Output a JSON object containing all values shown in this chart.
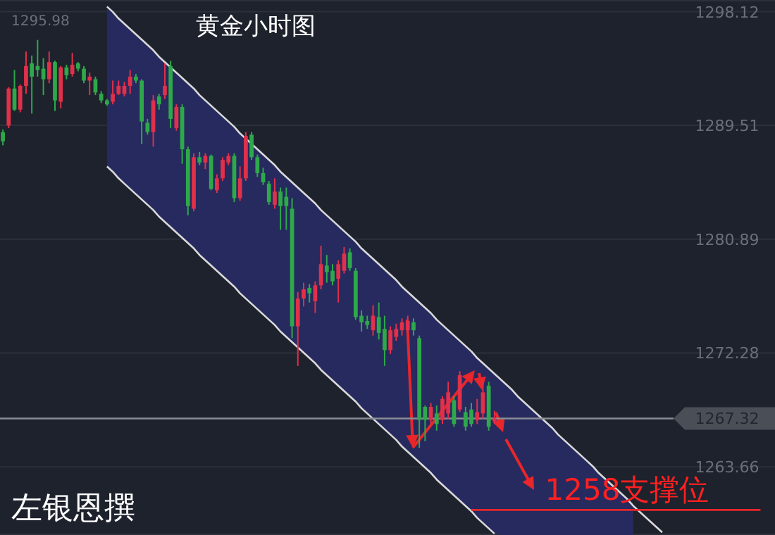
{
  "chart_data": {
    "type": "candlestick",
    "title": "黄金小时图",
    "categories": [
      null,
      null,
      null,
      null,
      null,
      null,
      null,
      null,
      null,
      null,
      null,
      null,
      null,
      null,
      null,
      null,
      null,
      null,
      null,
      null,
      null,
      null,
      null,
      null,
      null,
      null,
      null,
      null,
      null,
      null,
      null,
      null,
      null,
      null,
      null,
      null,
      null,
      null,
      null,
      null,
      null,
      null,
      null,
      null,
      null,
      null,
      null,
      null,
      null,
      null,
      null,
      null,
      null,
      null,
      null,
      null,
      null,
      null,
      null,
      null,
      null,
      null,
      null,
      null,
      null,
      null,
      null,
      null,
      null,
      null,
      null,
      null,
      null,
      null,
      null,
      null,
      null,
      null,
      null,
      null,
      null,
      null,
      null,
      null,
      null,
      null,
      null,
      null,
      null,
      null,
      null,
      null,
      null,
      null,
      null,
      null,
      null,
      null,
      null,
      null,
      null,
      null,
      null,
      null,
      null,
      null,
      null,
      null,
      null,
      null,
      null,
      null,
      null,
      null,
      null,
      null,
      null,
      null,
      null,
      null,
      null,
      null,
      null,
      null,
      null,
      null,
      null,
      null,
      null,
      null,
      null,
      null,
      null,
      null
    ],
    "ohlc": [
      [
        1289.0,
        1289.2,
        1288.0,
        1288.3
      ],
      [
        1289.5,
        1292.4,
        1289.3,
        1292.3
      ],
      [
        1292.3,
        1293.7,
        1290.6,
        1290.7
      ],
      [
        1290.7,
        1292.6,
        1290.5,
        1292.5
      ],
      [
        1292.5,
        1295.1,
        1291.9,
        1294.0
      ],
      [
        1294.2,
        1294.8,
        1290.4,
        1293.2
      ],
      [
        1294.0,
        1295.98,
        1293.2,
        1293.7
      ],
      [
        1293.8,
        1294.6,
        1291.8,
        1293.0
      ],
      [
        1293.0,
        1295.1,
        1292.7,
        1294.3
      ],
      [
        1294.3,
        1294.4,
        1290.6,
        1291.4
      ],
      [
        1291.3,
        1294.0,
        1290.8,
        1293.9
      ],
      [
        1293.9,
        1294.1,
        1293.0,
        1293.3
      ],
      [
        1293.4,
        1295.0,
        1293.2,
        1294.1
      ],
      [
        1294.2,
        1294.3,
        1293.6,
        1293.8
      ],
      [
        1293.8,
        1294.0,
        1292.7,
        1292.9
      ],
      [
        1292.9,
        1293.5,
        1291.8,
        1293.2
      ],
      [
        1293.0,
        1293.2,
        1291.8,
        1292.0
      ],
      [
        1291.9,
        1292.1,
        1291.2,
        1291.4
      ],
      [
        1291.4,
        1291.5,
        1291.0,
        1291.1
      ],
      [
        1291.3,
        1292.9,
        1291.1,
        1291.9
      ],
      [
        1291.9,
        1292.9,
        1291.8,
        1292.5
      ],
      [
        1291.9,
        1292.8,
        1291.7,
        1292.5
      ],
      [
        1292.5,
        1293.7,
        1291.9,
        1293.2
      ],
      [
        1293.2,
        1293.4,
        1292.7,
        1292.9
      ],
      [
        1292.9,
        1293.0,
        1288.1,
        1289.8
      ],
      [
        1289.7,
        1290.0,
        1288.8,
        1289.0
      ],
      [
        1289.0,
        1291.8,
        1287.9,
        1291.4
      ],
      [
        1291.7,
        1291.9,
        1290.7,
        1291.1
      ],
      [
        1291.8,
        1294.2,
        1291.5,
        1292.5
      ],
      [
        1294.0,
        1294.4,
        1289.3,
        1290.0
      ],
      [
        1289.3,
        1291.1,
        1289.1,
        1290.9
      ],
      [
        1290.9,
        1291.1,
        1286.6,
        1287.7
      ],
      [
        1287.7,
        1287.9,
        1282.7,
        1283.4
      ],
      [
        1283.2,
        1287.4,
        1283.0,
        1287.1
      ],
      [
        1287.1,
        1287.5,
        1286.5,
        1286.7
      ],
      [
        1286.7,
        1287.4,
        1286.2,
        1287.2
      ],
      [
        1287.2,
        1287.3,
        1284.6,
        1284.7
      ],
      [
        1284.6,
        1285.8,
        1284.4,
        1285.5
      ],
      [
        1285.5,
        1287.1,
        1285.3,
        1286.9
      ],
      [
        1286.7,
        1287.4,
        1286.5,
        1287.2
      ],
      [
        1287.2,
        1287.4,
        1283.7,
        1284.0
      ],
      [
        1284.0,
        1286.4,
        1283.8,
        1285.5
      ],
      [
        1285.5,
        1289.0,
        1285.3,
        1288.7
      ],
      [
        1288.8,
        1289.0,
        1286.9,
        1287.1
      ],
      [
        1287.1,
        1287.3,
        1285.6,
        1285.9
      ],
      [
        1285.9,
        1286.3,
        1285.0,
        1285.2
      ],
      [
        1285.1,
        1285.3,
        1283.5,
        1283.7
      ],
      [
        1283.5,
        1285.5,
        1283.2,
        1284.5
      ],
      [
        1284.5,
        1284.8,
        1281.6,
        1283.4
      ],
      [
        1284.1,
        1284.8,
        1281.6,
        1283.4
      ],
      [
        1283.2,
        1284.0,
        1273.4,
        1274.3
      ],
      [
        1274.3,
        1276.9,
        1271.3,
        1276.4
      ],
      [
        1276.4,
        1277.6,
        1275.8,
        1277.1
      ],
      [
        1277.2,
        1277.5,
        1276.1,
        1276.8
      ],
      [
        1276.2,
        1277.7,
        1275.3,
        1277.4
      ],
      [
        1277.4,
        1280.4,
        1277.1,
        1279.0
      ],
      [
        1278.9,
        1279.7,
        1277.6,
        1278.4
      ],
      [
        1278.5,
        1279.0,
        1277.4,
        1277.7
      ],
      [
        1277.9,
        1279.3,
        1276.1,
        1279.0
      ],
      [
        1278.5,
        1280.3,
        1278.3,
        1279.8
      ],
      [
        1279.9,
        1280.2,
        1278.5,
        1278.7
      ],
      [
        1278.5,
        1278.7,
        1274.8,
        1275.0
      ],
      [
        1275.1,
        1275.5,
        1273.9,
        1274.6
      ],
      [
        1274.7,
        1275.1,
        1274.1,
        1274.4
      ],
      [
        1274.0,
        1275.9,
        1273.6,
        1275.1
      ],
      [
        1275.0,
        1276.1,
        1273.3,
        1273.8
      ],
      [
        1274.1,
        1275.1,
        1271.3,
        1272.5
      ],
      [
        1272.5,
        1274.3,
        1272.2,
        1274.0
      ],
      [
        1273.5,
        1274.5,
        1273.2,
        1274.1
      ],
      [
        1274.0,
        1274.9,
        1273.6,
        1274.6
      ],
      [
        1274.0,
        1275.1,
        1273.8,
        1274.7
      ],
      [
        1274.6,
        1274.9,
        1273.6,
        1274.0
      ],
      [
        1273.4,
        1273.6,
        1265.1,
        1267.2
      ],
      [
        1268.2,
        1268.3,
        1265.6,
        1267.2
      ],
      [
        1267.2,
        1268.5,
        1266.9,
        1268.2
      ],
      [
        1267.7,
        1268.3,
        1266.4,
        1266.9
      ],
      [
        1267.2,
        1269.0,
        1266.9,
        1268.8
      ],
      [
        1267.7,
        1270.1,
        1267.3,
        1269.3
      ],
      [
        1268.7,
        1269.0,
        1266.7,
        1266.9
      ],
      [
        1268.0,
        1270.9,
        1267.8,
        1270.6
      ],
      [
        1267.8,
        1268.2,
        1266.4,
        1266.7
      ],
      [
        1268.0,
        1268.5,
        1266.7,
        1266.9
      ],
      [
        1267.2,
        1268.8,
        1266.9,
        1267.8
      ],
      [
        1267.7,
        1270.1,
        1267.3,
        1269.3
      ],
      [
        1269.8,
        1270.1,
        1266.4,
        1266.7
      ],
      [
        1267.1,
        1267.9,
        1266.9,
        1267.32
      ],
      null,
      null,
      null,
      null,
      null,
      null,
      null,
      null,
      null,
      null,
      null,
      null,
      null,
      null,
      null,
      null,
      null,
      null,
      null,
      null,
      null,
      null,
      null,
      null,
      null,
      null,
      null,
      null,
      null,
      null,
      null,
      null,
      null,
      null,
      null,
      null,
      null,
      null,
      null,
      null,
      null,
      null,
      null,
      null,
      null,
      null,
      null,
      null
    ],
    "colors": [
      "#2ea84a",
      "#e0304a",
      "#2ea84a",
      "#e0304a",
      "#e0304a",
      "#2ea84a",
      "#2ea84a",
      "#2ea84a",
      "#e0304a",
      "#2ea84a",
      "#e0304a",
      "#2ea84a",
      "#e0304a",
      "#2ea84a",
      "#2ea84a",
      "#e0304a",
      "#2ea84a",
      "#2ea84a",
      "#2ea84a",
      "#e0304a",
      "#e0304a",
      "#e0304a",
      "#e0304a",
      "#2ea84a",
      "#2ea84a",
      "#2ea84a",
      "#e0304a",
      "#2ea84a",
      "#e0304a",
      "#2ea84a",
      "#e0304a",
      "#2ea84a",
      "#2ea84a",
      "#e0304a",
      "#2ea84a",
      "#e0304a",
      "#2ea84a",
      "#e0304a",
      "#e0304a",
      "#e0304a",
      "#2ea84a",
      "#e0304a",
      "#e0304a",
      "#2ea84a",
      "#2ea84a",
      "#2ea84a",
      "#2ea84a",
      "#e0304a",
      "#2ea84a",
      "#2ea84a",
      "#2ea84a",
      "#e0304a",
      "#e0304a",
      "#2ea84a",
      "#e0304a",
      "#e0304a",
      "#2ea84a",
      "#2ea84a",
      "#e0304a",
      "#e0304a",
      "#2ea84a",
      "#2ea84a",
      "#2ea84a",
      "#2ea84a",
      "#e0304a",
      "#2ea84a",
      "#2ea84a",
      "#e0304a",
      "#e0304a",
      "#e0304a",
      "#e0304a",
      "#2ea84a",
      "#2ea84a",
      "#2ea84a",
      "#e0304a",
      "#2ea84a",
      "#e0304a",
      "#e0304a",
      "#2ea84a",
      "#e0304a",
      "#2ea84a",
      "#2ea84a",
      "#e0304a",
      "#e0304a",
      "#2ea84a",
      "#e0304a",
      null,
      null,
      null,
      null,
      null,
      null,
      null,
      null,
      null,
      null,
      null,
      null,
      null,
      null,
      null,
      null,
      null,
      null,
      null,
      null,
      null,
      null,
      null,
      null,
      null,
      null,
      null,
      null,
      null,
      null,
      null,
      null,
      null,
      null,
      null,
      null,
      null,
      null,
      null,
      null,
      null,
      null,
      null,
      null,
      null,
      null,
      null,
      null
    ],
    "series": [
      {
        "type": "line",
        "color": "#d9d9d9",
        "values": [
          null,
          null,
          null,
          null,
          null,
          null,
          null,
          null,
          null,
          null,
          null,
          null,
          null,
          null,
          null,
          null,
          null,
          null,
          1298.5,
          1298.1,
          1297.6,
          1297.2,
          1296.8,
          1296.4,
          1296.0,
          1295.6,
          1295.2,
          1294.7,
          1294.3,
          1293.9,
          1293.5,
          1293.1,
          1292.7,
          1292.3,
          1291.8,
          1291.4,
          1291.0,
          1290.6,
          1290.2,
          1289.8,
          1289.4,
          1288.9,
          1288.5,
          1288.1,
          1287.7,
          1287.3,
          1286.9,
          1286.5,
          1286.0,
          1285.6,
          1285.2,
          1284.8,
          1284.4,
          1284.0,
          1283.6,
          1283.1,
          1282.7,
          1282.3,
          1281.9,
          1281.5,
          1281.1,
          1280.7,
          1280.2,
          1279.8,
          1279.4,
          1279.0,
          1278.6,
          1278.2,
          1277.8,
          1277.3,
          1276.9,
          1276.5,
          1276.1,
          1275.7,
          1275.3,
          1274.8,
          1274.4,
          1274.0,
          1273.6,
          1273.2,
          1272.8,
          1272.4,
          1271.9,
          1271.5,
          1271.1,
          1270.7,
          1270.3,
          1269.9,
          1269.5,
          1269.0,
          1268.6,
          1268.2,
          1267.8,
          1267.4,
          1267.0,
          1266.6,
          1266.1,
          1265.7,
          1265.3,
          1264.9,
          1264.5,
          1264.1,
          1263.7,
          1263.2,
          1262.8,
          1262.4,
          1262.0,
          1261.6,
          1261.2,
          1260.7,
          1260.3,
          1259.9,
          1259.5,
          1259.1,
          1258.7,
          null,
          null,
          null,
          null,
          null,
          null,
          null,
          null,
          null,
          null,
          null,
          null,
          null,
          null,
          null,
          null,
          null,
          null,
          null
        ],
        "upper": [
          null,
          null,
          null,
          null,
          null,
          null,
          null,
          null,
          null,
          null,
          null,
          null,
          null,
          null,
          null,
          null,
          null,
          null,
          1298.5,
          1298.1,
          1297.6,
          1297.2,
          1296.8,
          1296.4,
          1296.0,
          1295.6,
          1295.2,
          1294.7,
          1294.3,
          1293.9,
          1293.5,
          1293.1,
          1292.7,
          1292.3,
          1291.8,
          1291.4,
          1291.0,
          1290.6,
          1290.2,
          1289.8,
          1289.4,
          1288.9,
          1288.5,
          1288.1,
          1287.7,
          1287.3,
          1286.9,
          1286.5,
          1286.0,
          1285.6,
          1285.2,
          1284.8,
          1284.4,
          1284.0,
          1283.6,
          1283.1,
          1282.7,
          1282.3,
          1281.9,
          1281.5,
          1281.1,
          1280.7,
          1280.2,
          1279.8,
          1279.4,
          1279.0,
          1278.6,
          1278.2,
          1277.8,
          1277.3,
          1276.9,
          1276.5,
          1276.1,
          1275.7,
          1275.3,
          1274.8,
          1274.4,
          1274.0,
          1273.6,
          1273.2,
          1272.8,
          1272.4,
          1271.9,
          1271.5,
          1271.1,
          1270.7,
          1270.3,
          1269.9,
          1269.5,
          1269.0,
          1268.6,
          1268.2,
          1267.8,
          1267.4,
          1267.0,
          1266.6,
          1266.1,
          1265.7,
          1265.3,
          1264.9,
          1264.5,
          1264.1,
          1263.7,
          1263.2,
          1262.8,
          1262.4,
          1262.0,
          1261.6,
          1261.2,
          1260.7,
          null,
          null,
          null,
          null,
          null,
          null,
          null,
          null,
          null,
          null,
          null,
          null,
          null,
          null,
          null,
          null,
          null,
          null,
          null,
          null,
          null,
          null,
          null,
          null
        ],
        "lower": [
          null,
          null,
          null,
          null,
          null,
          null,
          null,
          null,
          null,
          null,
          null,
          null,
          null,
          null,
          null,
          null,
          null,
          null,
          1286.4,
          1286.0,
          1285.5,
          1285.1,
          1284.7,
          1284.3,
          1283.9,
          1283.5,
          1283.1,
          1282.6,
          1282.2,
          1281.8,
          1281.4,
          1281.0,
          1280.6,
          1280.2,
          1279.7,
          1279.3,
          1278.9,
          1278.5,
          1278.1,
          1277.7,
          1277.3,
          1276.8,
          1276.4,
          1276.0,
          1275.6,
          1275.2,
          1274.8,
          1274.4,
          1273.9,
          1273.5,
          1273.1,
          1272.7,
          1272.3,
          1271.9,
          1271.5,
          1271.0,
          1270.6,
          1270.2,
          1269.8,
          1269.4,
          1269.0,
          1268.6,
          1268.1,
          1267.7,
          1267.3,
          1266.9,
          1266.5,
          1266.1,
          1265.7,
          1265.2,
          1264.8,
          1264.4,
          1264.0,
          1263.6,
          1263.2,
          1262.7,
          1262.3,
          1261.9,
          1261.5,
          1261.1,
          1260.7,
          1260.3,
          1259.8,
          1259.4,
          1259.0,
          1258.6,
          1258.5,
          1258.5,
          1258.5,
          1258.5,
          1258.5,
          1258.5,
          1258.5,
          1258.5,
          1258.5,
          1258.5,
          1258.5,
          1258.5,
          1258.5,
          1258.5,
          1258.5,
          1258.5,
          1258.5,
          1258.5,
          1258.5,
          1258.5,
          1258.5,
          1258.5,
          1258.5,
          1258.5,
          null,
          null,
          null,
          null,
          null,
          null,
          null,
          null,
          null,
          null,
          null,
          null,
          null,
          null,
          null,
          null,
          null,
          null,
          null,
          null,
          null,
          null,
          null,
          null
        ]
      },
      {
        "type": "line",
        "color": "#d9d9d9",
        "values": [
          null,
          null,
          null,
          null,
          null,
          null,
          null,
          null,
          null,
          null,
          null,
          null,
          null,
          null,
          null,
          null,
          null,
          null,
          1286.4,
          1286.0,
          1285.5,
          1285.1,
          1284.7,
          1284.3,
          1283.9,
          1283.5,
          1283.1,
          1282.6,
          1282.2,
          1281.8,
          1281.4,
          1281.0,
          1280.6,
          1280.2,
          1279.7,
          1279.3,
          1278.9,
          1278.5,
          1278.1,
          1277.7,
          1277.3,
          1276.8,
          1276.4,
          1276.0,
          1275.6,
          1275.2,
          1274.8,
          1274.4,
          1273.9,
          1273.5,
          1273.1,
          1272.7,
          1272.3,
          1271.9,
          1271.5,
          1271.0,
          1270.6,
          1270.2,
          1269.8,
          1269.4,
          1269.0,
          1268.6,
          1268.1,
          1267.7,
          1267.3,
          1266.9,
          1266.5,
          1266.1,
          1265.7,
          1265.2,
          1264.8,
          1264.4,
          1264.0,
          1263.6,
          1263.2,
          1262.7,
          1262.3,
          1261.9,
          1261.5,
          1261.1,
          1260.7,
          1260.3,
          1259.8,
          1259.4,
          1259.0,
          1258.6,
          null,
          null,
          null,
          null,
          null,
          null,
          null,
          null,
          null,
          null,
          null,
          null,
          null,
          null,
          null,
          null,
          null,
          null,
          null,
          null,
          null,
          null,
          null,
          null,
          null,
          null,
          null,
          null,
          null,
          null,
          null,
          null,
          null,
          null,
          null,
          null,
          null,
          null,
          null,
          null,
          null,
          null,
          null,
          null,
          null,
          null,
          null,
          null
        ]
      },
      {
        "type": "line",
        "color": "#e8262b",
        "values": [
          null,
          null,
          null,
          null,
          null,
          null,
          null,
          null,
          null,
          null,
          null,
          null,
          null,
          null,
          null,
          null,
          null,
          null,
          null,
          null,
          null,
          null,
          null,
          null,
          null,
          null,
          null,
          null,
          null,
          null,
          null,
          null,
          null,
          null,
          null,
          null,
          null,
          null,
          null,
          null,
          null,
          null,
          null,
          null,
          null,
          null,
          null,
          null,
          null,
          null,
          null,
          null,
          null,
          null,
          null,
          null,
          null,
          null,
          null,
          null,
          null,
          null,
          null,
          null,
          null,
          null,
          null,
          null,
          null,
          null,
          null,
          null,
          null,
          null,
          null,
          null,
          null,
          null,
          null,
          null,
          null,
          1260.4,
          1260.4,
          1260.4,
          1260.4,
          1260.4,
          1260.4,
          1260.4,
          1260.4,
          1260.4,
          1260.4,
          1260.4,
          1260.4,
          1260.4,
          1260.4,
          1260.4,
          1260.4,
          1260.4,
          1260.4,
          1260.4,
          1260.4,
          1260.4,
          1260.4,
          1260.4,
          1260.4,
          1260.4,
          1260.4,
          1260.4,
          1260.4,
          1260.4,
          1260.4,
          1260.4,
          1260.4,
          1260.4,
          1260.4,
          1260.4,
          1260.4,
          1260.4,
          1260.4,
          1260.4,
          1260.4,
          1260.4,
          1260.4,
          1260.4,
          1260.4,
          1260.4,
          1260.4,
          1260.4,
          1260.4,
          1260.4,
          1260.4,
          1260.4,
          null,
          null
        ]
      }
    ],
    "ylim": [
      1258.5,
      1299.0
    ],
    "yticks": [
      1298.12,
      1289.51,
      1280.89,
      1272.28,
      1263.66
    ],
    "grid": "y",
    "ref_lines": [
      {
        "axis": "y",
        "value": 1267.32,
        "label": "1267.32",
        "color": "#8a8d94"
      }
    ],
    "annotations": [
      "1295.98",
      "1258支撑位",
      "左银恩撰"
    ]
  }
}
